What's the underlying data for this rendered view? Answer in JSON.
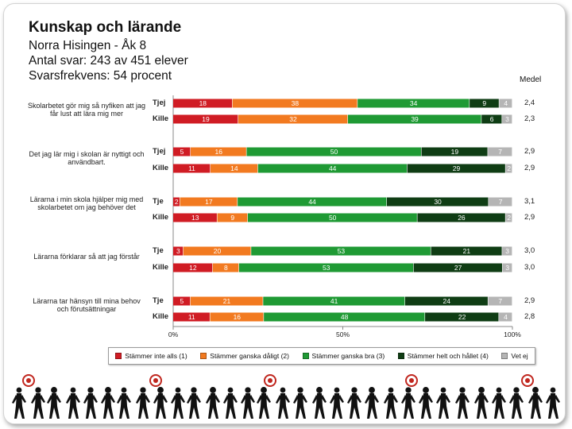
{
  "header": {
    "title": "Kunskap och lärande",
    "lines": [
      "Norra Hisingen - Åk 8",
      "Antal svar: 243 av 451 elever",
      "Svarsfrekvens: 54 procent"
    ],
    "medel_label": "Medel"
  },
  "chart_data": {
    "type": "bar",
    "orientation": "horizontal",
    "stacked": true,
    "xlim": [
      0,
      100
    ],
    "xticks": [
      "0%",
      "50%",
      "100%"
    ],
    "series_names": [
      "Stämmer inte alls (1)",
      "Stämmer ganska dåligt (2)",
      "Stämmer ganska bra (3)",
      "Stämmer helt och hållet (4)",
      "Vet ej"
    ],
    "colors": [
      "#d01c24",
      "#f27a20",
      "#1f9a34",
      "#0f3d14",
      "#b5b5b5"
    ],
    "groups": [
      {
        "statement": "Skolarbetet gör mig så nyfiken att jag får lust att lära mig mer",
        "rows": [
          {
            "label": "Tjej",
            "values": [
              18,
              38,
              34,
              9,
              4
            ],
            "mean": "2,4"
          },
          {
            "label": "Kille",
            "values": [
              19,
              32,
              39,
              6,
              3
            ],
            "mean": "2,3"
          }
        ]
      },
      {
        "statement": "Det jag lär mig i skolan är nyttigt och användbart.",
        "rows": [
          {
            "label": "Tjej",
            "values": [
              5,
              16,
              50,
              19,
              7
            ],
            "mean": "2,9"
          },
          {
            "label": "Kille",
            "values": [
              11,
              14,
              44,
              29,
              2
            ],
            "mean": "2,9"
          }
        ]
      },
      {
        "statement": "Lärarna i min skola hjälper mig med skolarbetet om jag behöver det",
        "rows": [
          {
            "label": "Tje",
            "values": [
              2,
              17,
              44,
              30,
              7
            ],
            "mean": "3,1"
          },
          {
            "label": "Kille",
            "values": [
              13,
              9,
              50,
              26,
              2
            ],
            "mean": "2,9"
          }
        ]
      },
      {
        "statement": "Lärarna förklarar så att jag förstår",
        "rows": [
          {
            "label": "Tje",
            "values": [
              3,
              20,
              53,
              21,
              3
            ],
            "mean": "3,0"
          },
          {
            "label": "Kille",
            "values": [
              12,
              8,
              53,
              27,
              3
            ],
            "mean": "3,0"
          }
        ]
      },
      {
        "statement": "Lärarna tar hänsyn till mina behov och förutsättningar",
        "rows": [
          {
            "label": "Tje",
            "values": [
              5,
              21,
              41,
              24,
              7
            ],
            "mean": "2,9"
          },
          {
            "label": "Kille",
            "values": [
              11,
              16,
              48,
              22,
              4
            ],
            "mean": "2,8"
          }
        ]
      }
    ]
  }
}
